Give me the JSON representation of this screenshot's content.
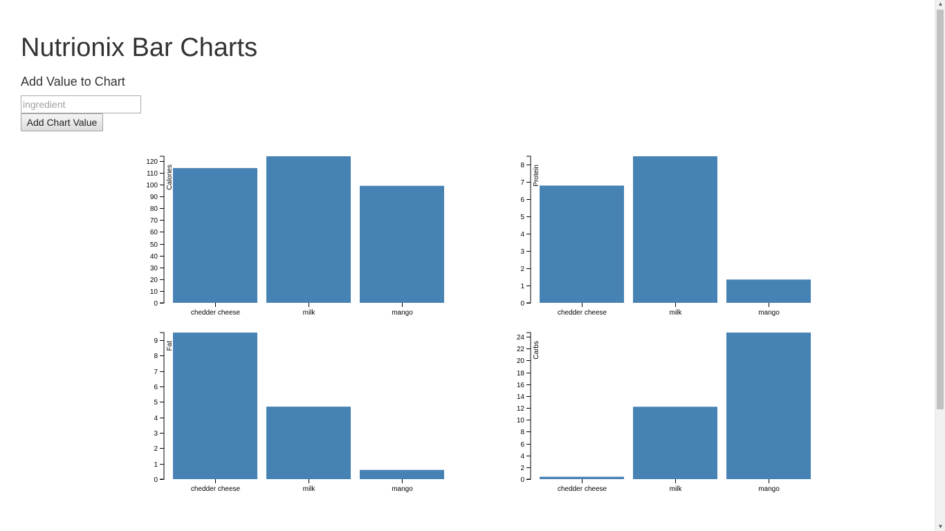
{
  "page": {
    "title": "Nutrionix Bar Charts",
    "subtitle": "Add Value to Chart",
    "input_placeholder": "ingredient",
    "button_label": "Add Chart Value"
  },
  "colors": {
    "bar": "#4682b4"
  },
  "chart_data": [
    {
      "type": "bar",
      "ylabel": "Calories",
      "categories": [
        "chedder cheese",
        "milk",
        "mango"
      ],
      "values": [
        114,
        124,
        99
      ],
      "ylim": [
        0,
        124
      ],
      "yticks": [
        0,
        10,
        20,
        30,
        40,
        50,
        60,
        70,
        80,
        90,
        100,
        110,
        120
      ]
    },
    {
      "type": "bar",
      "ylabel": "Protein",
      "categories": [
        "chedder cheese",
        "milk",
        "mango"
      ],
      "values": [
        6.8,
        8.5,
        1.35
      ],
      "ylim": [
        0,
        8.5
      ],
      "yticks": [
        0,
        1,
        2,
        3,
        4,
        5,
        6,
        7,
        8
      ]
    },
    {
      "type": "bar",
      "ylabel": "Fat",
      "categories": [
        "chedder cheese",
        "milk",
        "mango"
      ],
      "values": [
        9.5,
        4.7,
        0.6
      ],
      "ylim": [
        0,
        9.5
      ],
      "yticks": [
        0,
        1,
        2,
        3,
        4,
        5,
        6,
        7,
        8,
        9
      ]
    },
    {
      "type": "bar",
      "ylabel": "Carbs",
      "categories": [
        "chedder cheese",
        "milk",
        "mango"
      ],
      "values": [
        0.4,
        12.2,
        24.7
      ],
      "ylim": [
        0,
        24.7
      ],
      "yticks": [
        0,
        2,
        4,
        6,
        8,
        10,
        12,
        14,
        16,
        18,
        20,
        22,
        24
      ]
    }
  ]
}
